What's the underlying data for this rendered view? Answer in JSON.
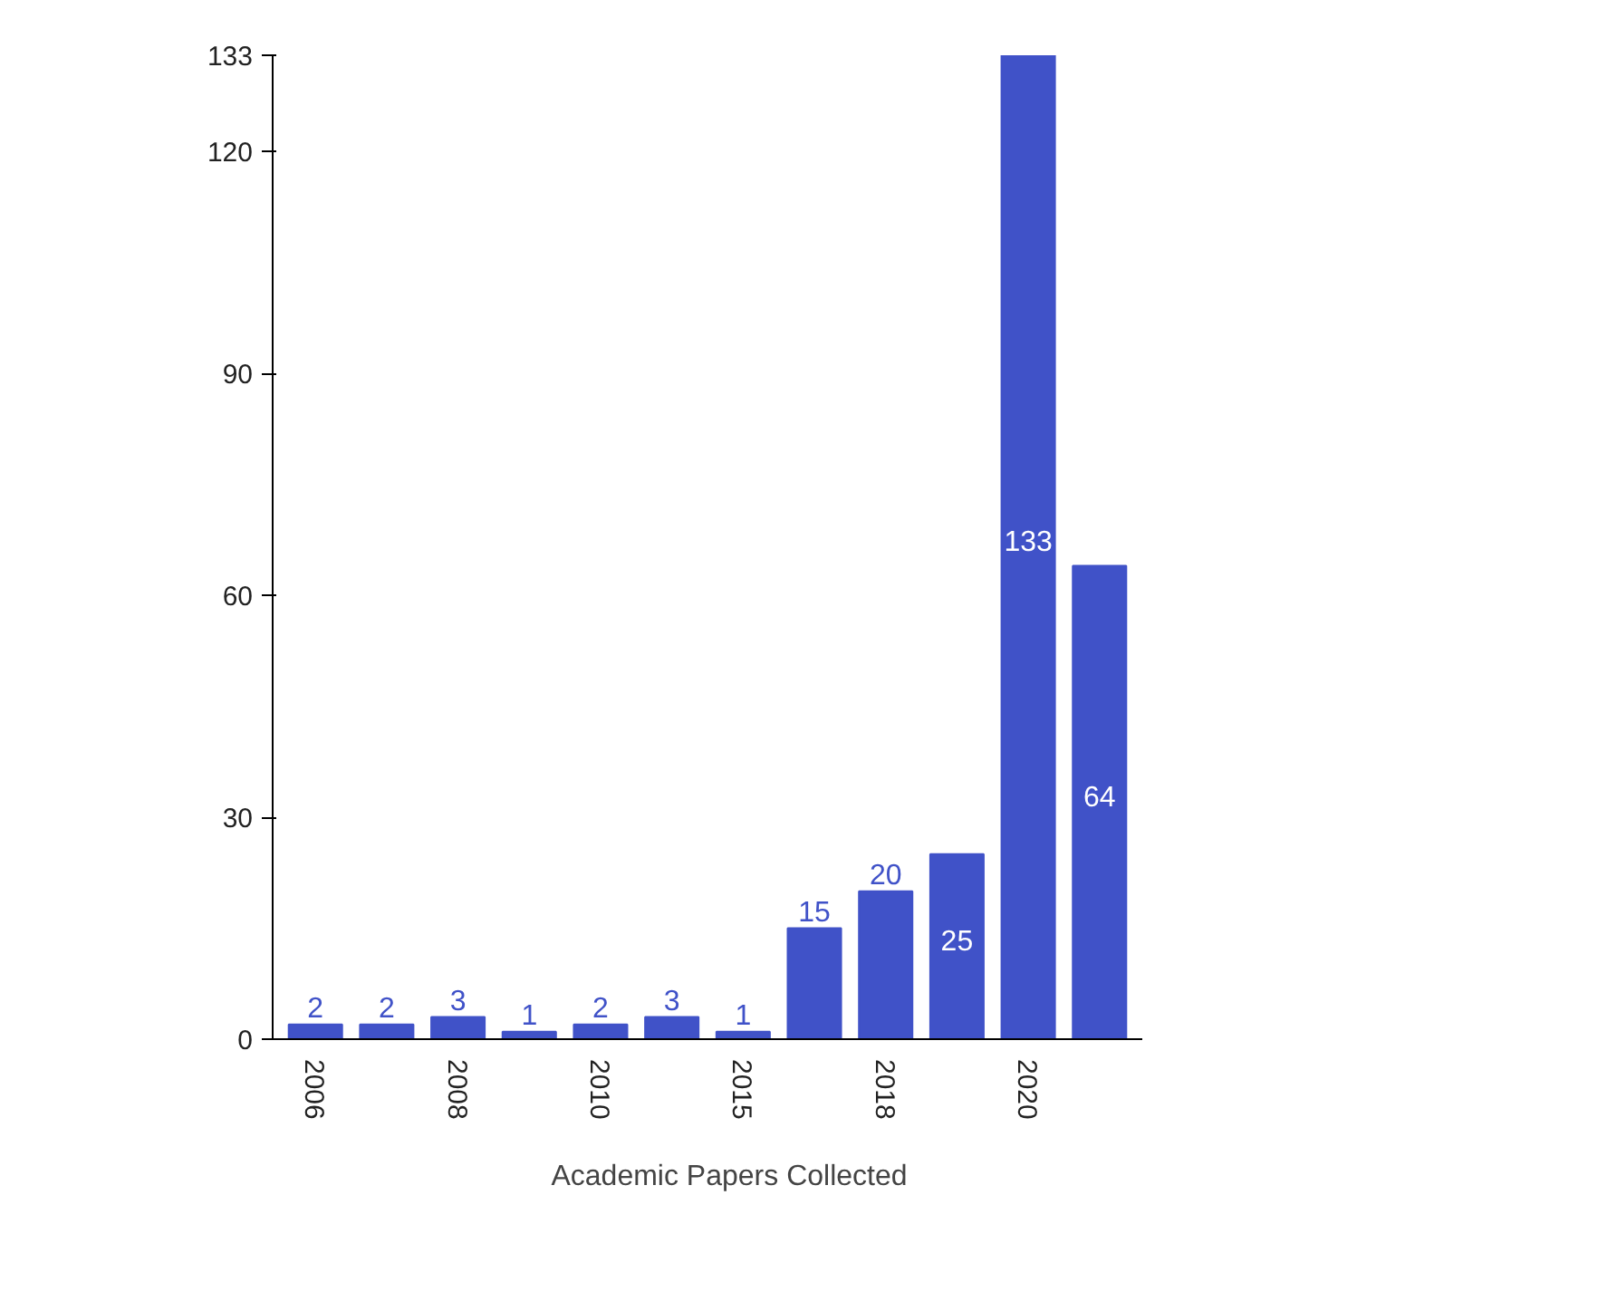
{
  "chart_data": {
    "type": "bar",
    "categories": [
      "2006",
      null,
      "2008",
      null,
      "2010",
      null,
      "2015",
      null,
      "2018",
      null,
      "2020",
      null
    ],
    "series": [
      {
        "name": "Academic Papers Collected",
        "color": "#4052c8",
        "values": [
          2,
          2,
          3,
          1,
          2,
          3,
          1,
          15,
          20,
          25,
          133,
          64
        ]
      }
    ],
    "ylim": [
      0,
      133
    ],
    "yticks": [
      0,
      30,
      60,
      90,
      120,
      133
    ],
    "data_labels": true,
    "legend": "bottom"
  }
}
